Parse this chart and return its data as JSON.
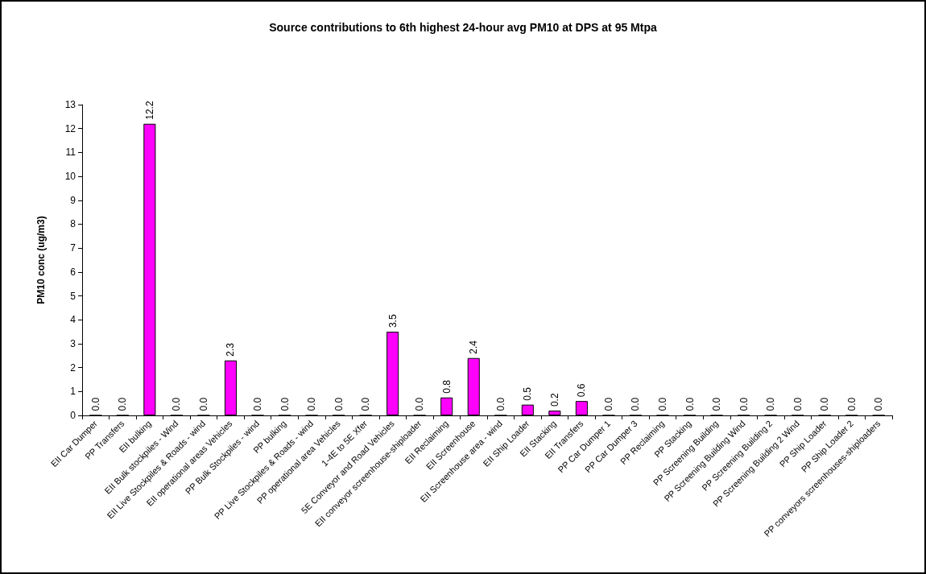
{
  "chart_data": {
    "type": "bar",
    "title": "Source contributions to 6th highest 24-hour avg PM10 at DPS at 95 Mtpa",
    "ylabel": "PM10 conc (ug/m3)",
    "categories": [
      "EII Car Dumper",
      "PP Transfers",
      "EII bulking",
      "EII Bulk stockpiles - Wind",
      "EII Live Stockpiles & Roads - wind",
      "EII operational areas Vehicles",
      "PP Bulk Stockpiles - wind",
      "PP bulking",
      "PP Live Stockpiles & Roads - wind",
      "PP operational area Vehicles",
      "1-4E to 5E Xfer",
      "5E Conveyor and Road Vehicles",
      "EII conveyor screenhouse-shiploader",
      "EII Reclaiming",
      "EII Screenhouse",
      "EII Screenhouse area - wind",
      "EII Ship Loader",
      "EII Stacking",
      "EII Transfers",
      "PP Car Dumper 1",
      "PP Car Dumper 3",
      "PP Reclaiming",
      "PP Stacking",
      "PP Screening Building",
      "PP Screening Building Wind",
      "PP Screening Building 2",
      "PP Screening Building 2 Wind",
      "PP Ship Loader",
      "PP Ship Loader 2",
      "PP conveyors screenhouses-shiploaders"
    ],
    "values": [
      0,
      0,
      12.2,
      0,
      0,
      2.3,
      0,
      0,
      0,
      0,
      0,
      3.5,
      0,
      0.75,
      2.4,
      0,
      0.45,
      0.2,
      0.6,
      0,
      0,
      0,
      0,
      0,
      0,
      0,
      0,
      0,
      0,
      0
    ],
    "value_labels": [
      "0.0",
      "0.0",
      "12.2",
      "0.0",
      "0.0",
      "2.3",
      "0.0",
      "0.0",
      "0.0",
      "0.0",
      "0.0",
      "3.5",
      "0.0",
      "0.8",
      "2.4",
      "0.0",
      "0.5",
      "0.2",
      "0.6",
      "0.0",
      "0.0",
      "0.0",
      "0.0",
      "0.0",
      "0.0",
      "0.0",
      "0.0",
      "0.0",
      "0.0",
      "0.0"
    ],
    "color": "#ff00ff",
    "ylim": [
      0,
      13
    ],
    "yticks": [
      0,
      1,
      2,
      3,
      4,
      5,
      6,
      7,
      8,
      9,
      10,
      11,
      12,
      13
    ],
    "grid": false
  }
}
